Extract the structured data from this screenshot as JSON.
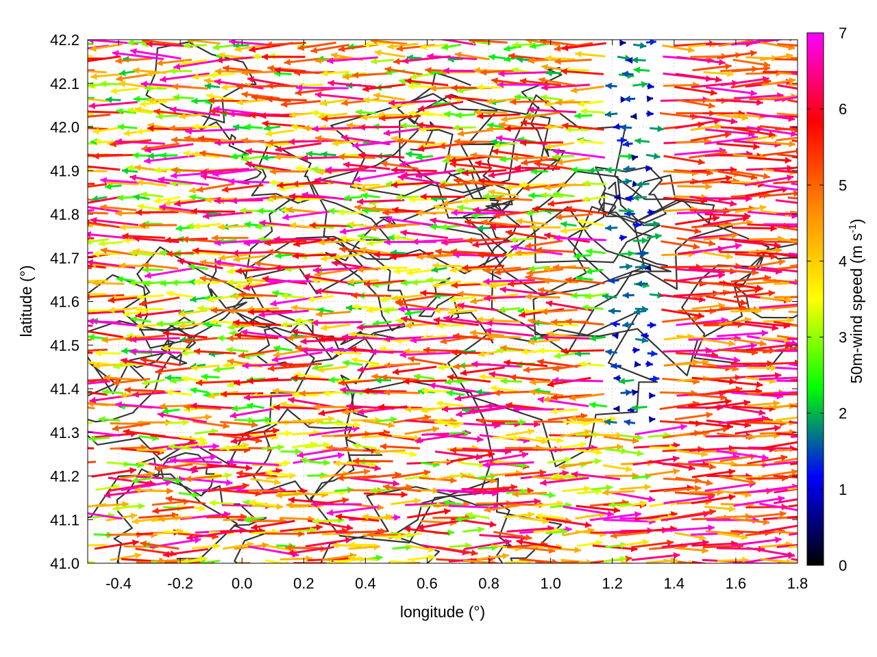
{
  "chart_data": {
    "type": "vector-field",
    "xlabel": "longitude (°)",
    "ylabel": "latitude (°)",
    "xlim": [
      -0.5,
      1.8
    ],
    "ylim": [
      41.0,
      42.2
    ],
    "x_ticks": [
      "-0.4",
      "-0.2",
      "0.0",
      "0.2",
      "0.4",
      "0.6",
      "0.8",
      "1.0",
      "1.2",
      "1.4",
      "1.6",
      "1.8"
    ],
    "x_tick_values": [
      -0.4,
      -0.2,
      0.0,
      0.2,
      0.4,
      0.6,
      0.8,
      1.0,
      1.2,
      1.4,
      1.6,
      1.8
    ],
    "y_ticks": [
      "41.0",
      "41.1",
      "41.2",
      "41.3",
      "41.4",
      "41.5",
      "41.6",
      "41.7",
      "41.8",
      "41.9",
      "42.0",
      "42.1",
      "42.2"
    ],
    "y_tick_values": [
      41.0,
      41.1,
      41.2,
      41.3,
      41.4,
      41.5,
      41.6,
      41.7,
      41.8,
      41.9,
      42.0,
      42.1,
      42.2
    ],
    "grid": true,
    "colorbar": {
      "label": "50m-wind speed (m s",
      "label_superscript": "-1",
      "label_suffix": ")",
      "range": [
        0,
        7
      ],
      "ticks": [
        "0",
        "1",
        "2",
        "3",
        "4",
        "5",
        "6",
        "7"
      ],
      "tick_values": [
        0,
        1,
        2,
        3,
        4,
        5,
        6,
        7
      ],
      "stops": [
        "#000000",
        "#0000ff",
        "#00ff00",
        "#ffff00",
        "#ff8c00",
        "#ff0000",
        "#ff00ff"
      ]
    },
    "wind_field": {
      "description_regions": [
        {
          "lon_range": [
            -0.5,
            0.9
          ],
          "lat_range": [
            41.4,
            42.2
          ],
          "direction": "westward",
          "speed_ms": 5.5
        },
        {
          "lon_range": [
            0.9,
            1.2
          ],
          "lat_range": [
            41.4,
            41.9
          ],
          "direction": "westward",
          "speed_ms": 4.5
        },
        {
          "lon_range": [
            1.2,
            1.35
          ],
          "lat_range": [
            41.3,
            42.2
          ],
          "direction": "calm",
          "speed_ms": 1.0
        },
        {
          "lon_range": [
            1.35,
            1.8
          ],
          "lat_range": [
            41.0,
            42.2
          ],
          "direction": "eastward",
          "speed_ms": 5.5
        },
        {
          "lon_range": [
            -0.5,
            0.8
          ],
          "lat_range": [
            41.0,
            41.35
          ],
          "direction": "eastward",
          "speed_ms": 5.0
        }
      ]
    },
    "contour_color": "#333333"
  }
}
